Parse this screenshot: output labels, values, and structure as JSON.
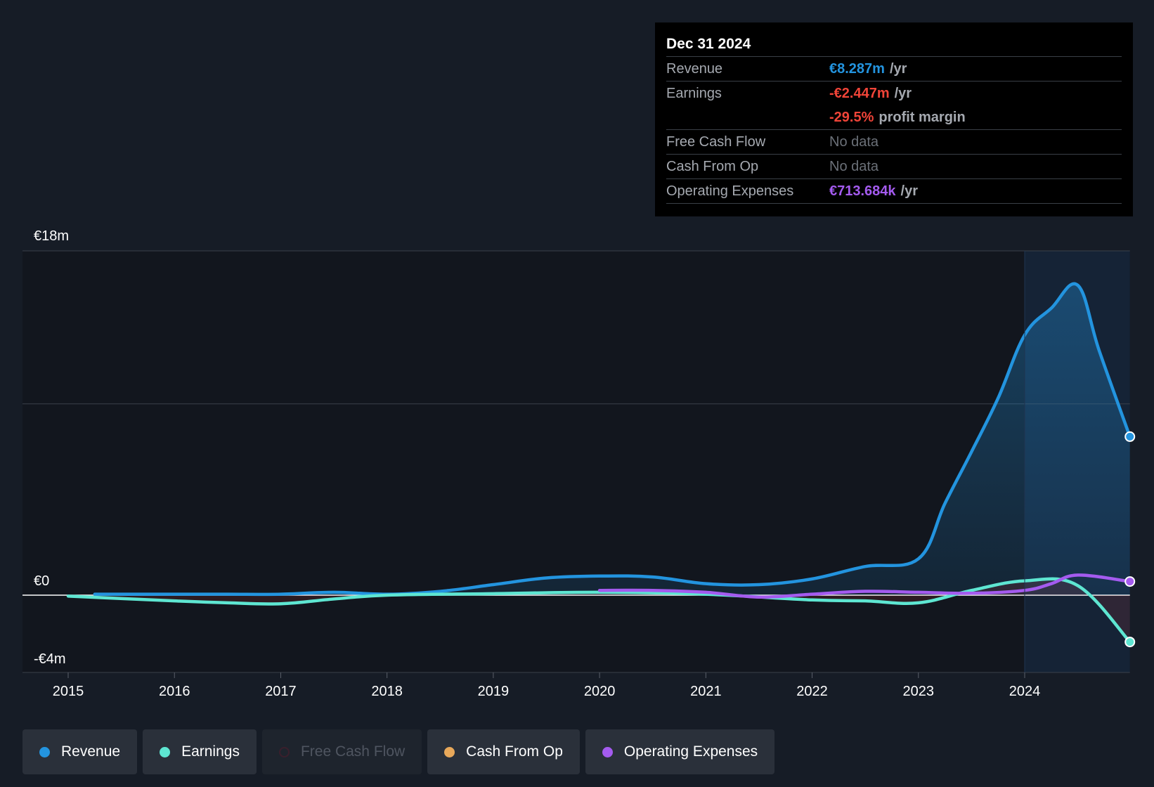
{
  "colors": {
    "revenue": "#2394df",
    "earnings": "#5ee6d2",
    "free_cash_flow": "#3a1f2c",
    "cash_from_op": "#e8a85a",
    "operating_expenses": "#a45bef",
    "negative": "#f04438",
    "background": "#161c26"
  },
  "tooltip": {
    "date": "Dec 31 2024",
    "rows": [
      {
        "label": "Revenue",
        "value": "€8.287m",
        "unit": "/yr"
      },
      {
        "label": "Earnings",
        "value": "-€2.447m",
        "unit": "/yr"
      },
      {
        "label": "",
        "value": "-29.5%",
        "unit": "profit margin"
      },
      {
        "label": "Free Cash Flow",
        "value": "No data",
        "unit": ""
      },
      {
        "label": "Cash From Op",
        "value": "No data",
        "unit": ""
      },
      {
        "label": "Operating Expenses",
        "value": "€713.684k",
        "unit": "/yr"
      }
    ]
  },
  "legend": [
    {
      "label": "Revenue",
      "key": "revenue",
      "enabled": true
    },
    {
      "label": "Earnings",
      "key": "earnings",
      "enabled": true
    },
    {
      "label": "Free Cash Flow",
      "key": "free_cash_flow",
      "enabled": false
    },
    {
      "label": "Cash From Op",
      "key": "cash_from_op",
      "enabled": true
    },
    {
      "label": "Operating Expenses",
      "key": "operating_expenses",
      "enabled": true
    }
  ],
  "chart_data": {
    "type": "line",
    "title": "",
    "xlabel": "",
    "ylabel": "",
    "ylim": [
      -4,
      18
    ],
    "xlim": [
      2014.6,
      2024.99
    ],
    "y_tick_labels": [
      {
        "value": 18,
        "label": "€18m"
      },
      {
        "value": 0,
        "label": "€0"
      },
      {
        "value": -4,
        "label": "-€4m"
      }
    ],
    "gridlines": [
      18,
      10,
      0
    ],
    "x_ticks": [
      2015,
      2016,
      2017,
      2018,
      2019,
      2020,
      2021,
      2022,
      2023,
      2024
    ],
    "highlight_start": 2024.0,
    "series": [
      {
        "name": "Revenue",
        "key": "revenue",
        "x": [
          2015.25,
          2016.0,
          2016.5,
          2017.0,
          2017.5,
          2018.0,
          2018.5,
          2019.0,
          2019.5,
          2020.0,
          2020.5,
          2021.0,
          2021.5,
          2022.0,
          2022.5,
          2023.0,
          2023.25,
          2023.5,
          2023.75,
          2024.0,
          2024.25,
          2024.5,
          2024.7,
          2024.99
        ],
        "y": [
          0.05,
          0.05,
          0.05,
          0.05,
          0.15,
          0.05,
          0.2,
          0.55,
          0.9,
          1.0,
          0.95,
          0.6,
          0.55,
          0.85,
          1.5,
          1.9,
          4.8,
          7.5,
          10.3,
          13.6,
          15.0,
          16.2,
          12.8,
          8.287
        ]
      },
      {
        "name": "Earnings",
        "key": "earnings",
        "x": [
          2015.0,
          2016.0,
          2016.5,
          2017.0,
          2017.5,
          2018.0,
          2019.0,
          2020.0,
          2021.0,
          2022.0,
          2022.5,
          2023.0,
          2023.5,
          2024.0,
          2024.5,
          2024.99
        ],
        "y": [
          -0.05,
          -0.3,
          -0.4,
          -0.45,
          -0.2,
          0.0,
          0.08,
          0.15,
          0.05,
          -0.25,
          -0.3,
          -0.4,
          0.25,
          0.75,
          0.5,
          -2.447
        ]
      },
      {
        "name": "Operating Expenses",
        "key": "operating_expenses",
        "x": [
          2020.0,
          2020.5,
          2021.0,
          2021.5,
          2022.0,
          2022.5,
          2023.0,
          2023.5,
          2024.0,
          2024.25,
          2024.5,
          2024.99
        ],
        "y": [
          0.25,
          0.25,
          0.15,
          -0.1,
          0.05,
          0.2,
          0.15,
          0.1,
          0.25,
          0.6,
          1.05,
          0.714
        ]
      }
    ]
  }
}
